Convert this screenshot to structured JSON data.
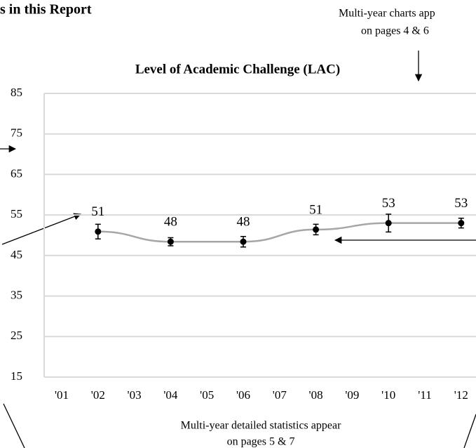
{
  "header": "s in this Report",
  "notes": {
    "charts": [
      "Multi-year charts app",
      "on pages 4 & 6"
    ],
    "statistics": [
      "Multi-year detailed statistics appear",
      "on pages 5 & 7"
    ]
  },
  "chart_data": {
    "type": "line",
    "title": "Level of Academic Challenge (LAC)",
    "categories": [
      "'01",
      "'02",
      "'03",
      "'04",
      "'05",
      "'06",
      "'07",
      "'08",
      "'09",
      "'10",
      "'11",
      "'12"
    ],
    "series": [
      {
        "color": "#a6a6a6",
        "marker_color": "#000000",
        "values": [
          null,
          50.9,
          null,
          48.4,
          null,
          48.4,
          null,
          51.4,
          null,
          53.0,
          null,
          53.0
        ],
        "value_labels": [
          null,
          "51",
          null,
          "48",
          null,
          "48",
          null,
          "51",
          null,
          "53",
          null,
          "53"
        ],
        "errors": [
          null,
          1.8,
          null,
          1.0,
          null,
          1.3,
          null,
          1.3,
          null,
          2.2,
          null,
          1.2
        ]
      }
    ],
    "ylim": [
      15,
      85
    ],
    "yticks": [
      15,
      25,
      35,
      45,
      55,
      65,
      75,
      85
    ],
    "grid": true
  }
}
